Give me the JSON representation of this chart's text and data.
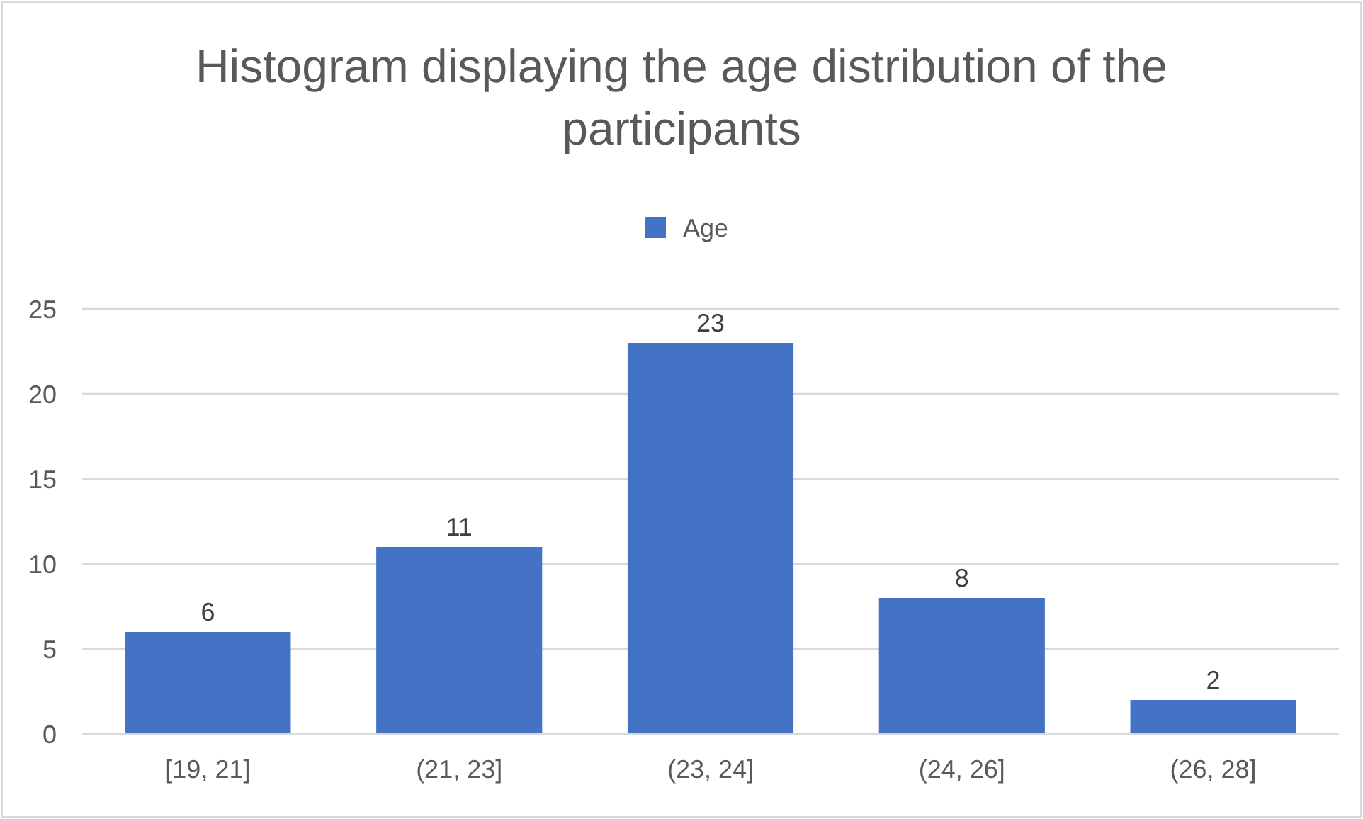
{
  "chart_data": {
    "type": "bar",
    "title": "Histogram displaying the age distribution of the participants",
    "categories": [
      "[19, 21]",
      "(21, 23]",
      "(23, 24]",
      "(24, 26]",
      "(26, 28]"
    ],
    "series": [
      {
        "name": "Age",
        "color": "#4472c4",
        "values": [
          6,
          11,
          23,
          8,
          2
        ]
      }
    ],
    "ylim": [
      0,
      25
    ],
    "yticks": [
      0,
      5,
      10,
      15,
      20,
      25
    ],
    "grid": "y",
    "legend": "top",
    "data_labels": true
  }
}
